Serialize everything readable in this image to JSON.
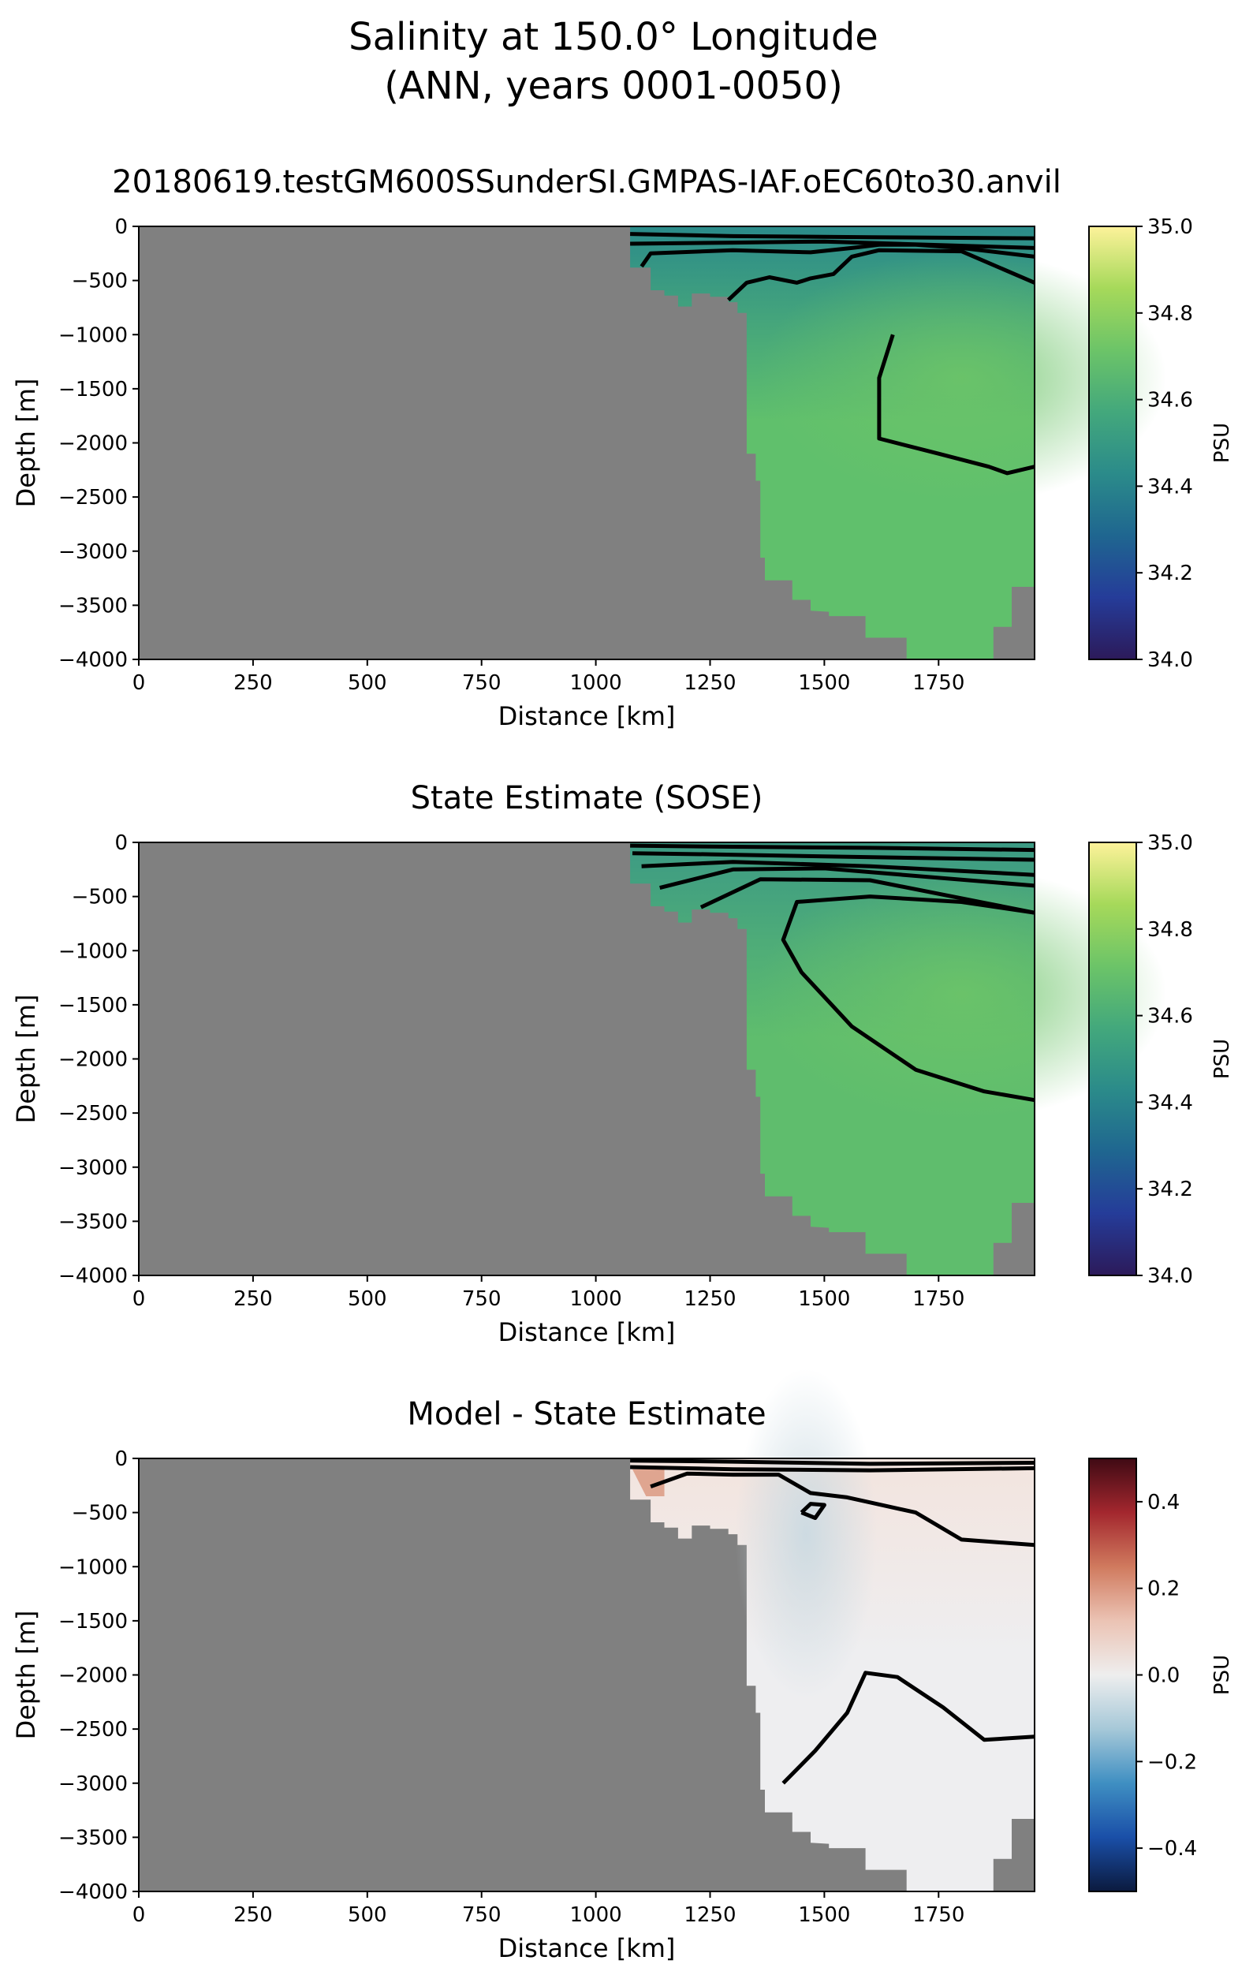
{
  "figure": {
    "title_line1": "Salinity at 150.0° Longitude",
    "title_line2": "(ANN, years 0001-0050)"
  },
  "colors": {
    "land": "#808080",
    "contour": "#000000"
  },
  "chart_data": [
    {
      "type": "heatmap",
      "title": "20180619.testGM600SSunderSI.GMPAS-IAF.oEC60to30.anvil",
      "xlabel": "Distance [km]",
      "ylabel": "Depth [m]",
      "xlim": [
        0,
        1960
      ],
      "ylim": [
        -4000,
        0
      ],
      "xticks": [
        "0",
        "250",
        "500",
        "750",
        "1000",
        "1250",
        "1500",
        "1750"
      ],
      "yticks": [
        "0",
        "−500",
        "−1000",
        "−1500",
        "−2000",
        "−2500",
        "−3000",
        "−3500",
        "−4000"
      ],
      "colorbar": {
        "label": "PSU",
        "range": [
          34.0,
          35.0
        ],
        "ticks": [
          "34.0",
          "34.2",
          "34.4",
          "34.6",
          "34.8",
          "35.0"
        ],
        "colormap": [
          "#2c1a5a",
          "#253c99",
          "#1f6690",
          "#2b8b8a",
          "#43a87c",
          "#6cc468",
          "#a6d95a",
          "#fdf29a"
        ]
      },
      "field": {
        "surface_color": "#2b8b8a",
        "deep_color": "#60c06c",
        "core_color": "#6cc468"
      },
      "grid": false
    },
    {
      "type": "heatmap",
      "title": "State Estimate (SOSE)",
      "xlabel": "Distance [km]",
      "ylabel": "Depth [m]",
      "xlim": [
        0,
        1960
      ],
      "ylim": [
        -4000,
        0
      ],
      "xticks": [
        "0",
        "250",
        "500",
        "750",
        "1000",
        "1250",
        "1500",
        "1750"
      ],
      "yticks": [
        "0",
        "−500",
        "−1000",
        "−1500",
        "−2000",
        "−2500",
        "−3000",
        "−3500",
        "−4000"
      ],
      "colorbar": {
        "label": "PSU",
        "range": [
          34.0,
          35.0
        ],
        "ticks": [
          "34.0",
          "34.2",
          "34.4",
          "34.6",
          "34.8",
          "35.0"
        ],
        "colormap": [
          "#2c1a5a",
          "#253c99",
          "#1f6690",
          "#2b8b8a",
          "#43a87c",
          "#6cc468",
          "#a6d95a",
          "#fdf29a"
        ]
      },
      "field": {
        "surface_color": "#3c9a84",
        "deep_color": "#5fbd6d",
        "core_color": "#6cc468"
      },
      "grid": false
    },
    {
      "type": "heatmap",
      "title": "Model - State Estimate",
      "xlabel": "Distance [km]",
      "ylabel": "Depth [m]",
      "xlim": [
        0,
        1960
      ],
      "ylim": [
        -4000,
        0
      ],
      "xticks": [
        "0",
        "250",
        "500",
        "750",
        "1000",
        "1250",
        "1500",
        "1750"
      ],
      "yticks": [
        "0",
        "−500",
        "−1000",
        "−1500",
        "−2000",
        "−2500",
        "−3000",
        "−3500",
        "−4000"
      ],
      "colorbar": {
        "label": "PSU",
        "range": [
          -0.5,
          0.5
        ],
        "ticks": [
          "−0.4",
          "−0.2",
          "0.0",
          "0.2",
          "0.4"
        ],
        "tick_values": [
          -0.4,
          -0.2,
          0.0,
          0.2,
          0.4
        ],
        "colormap": [
          "#0b1a3e",
          "#1a4fa8",
          "#3f8fc2",
          "#a6c8d8",
          "#eeeeee",
          "#ebc3b4",
          "#d07a5e",
          "#a3272e",
          "#3f0a14"
        ]
      },
      "field": {
        "surface_color": "#f3e4de",
        "deep_color": "#eeeef0",
        "anomaly_color": "#c9d9e1"
      },
      "grid": false
    }
  ]
}
